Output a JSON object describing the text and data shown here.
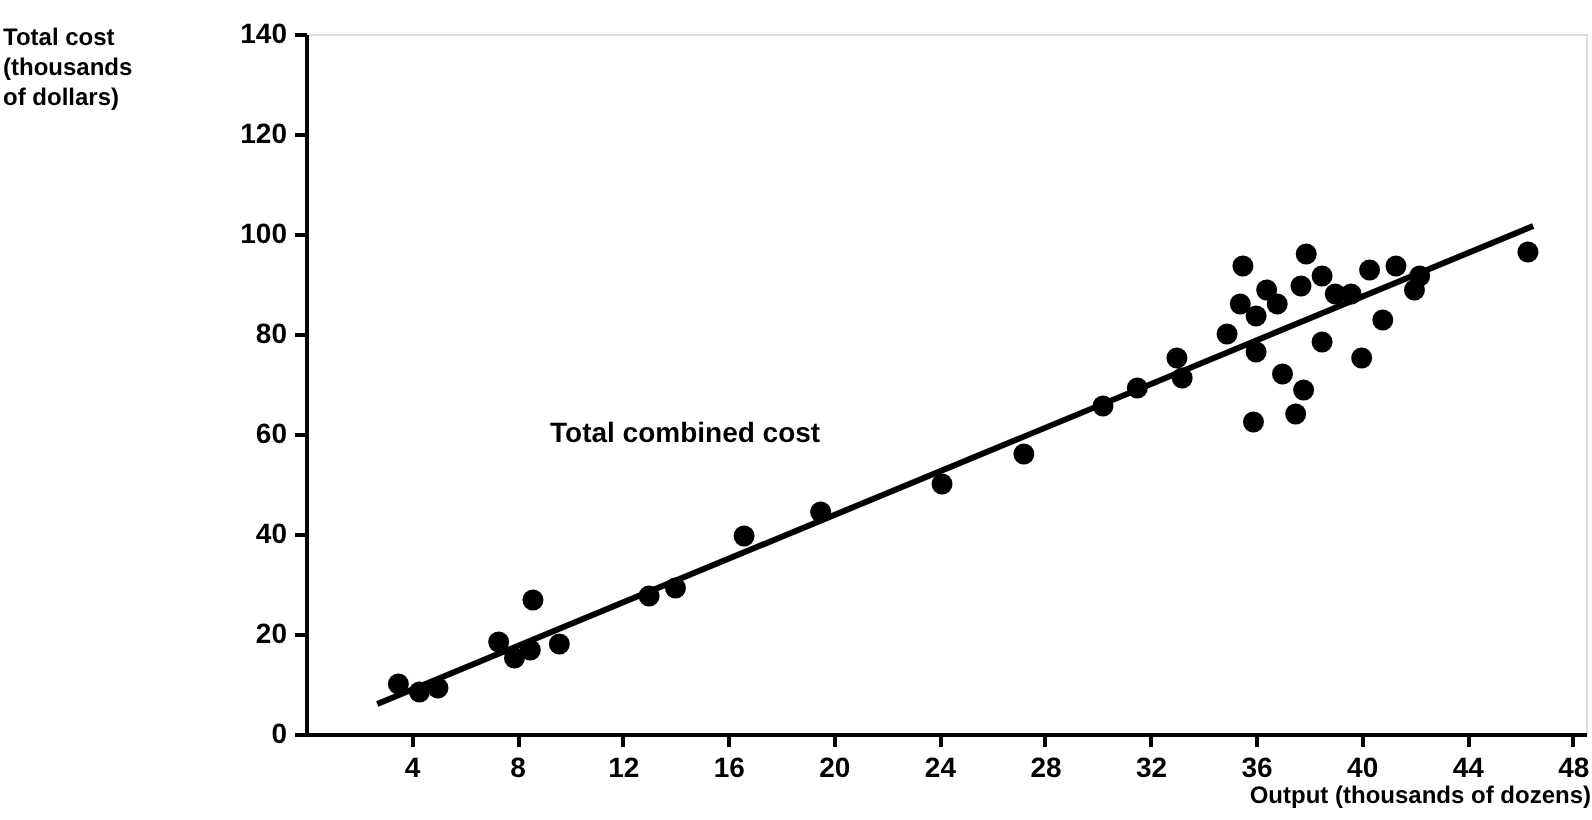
{
  "chart_data": {
    "type": "scatter",
    "xlabel": "Output (thousands of dozens)",
    "ylabel": "Total cost (thousands of dollars)",
    "xlim": [
      0,
      48.5
    ],
    "ylim": [
      0,
      140
    ],
    "xticks": [
      4,
      8,
      12,
      16,
      20,
      24,
      28,
      32,
      36,
      40,
      44,
      48
    ],
    "yticks": [
      0,
      20,
      40,
      60,
      80,
      100,
      120,
      140
    ],
    "grid": false,
    "annotations": [
      "Total combined cost"
    ],
    "series": [
      {
        "marker": "circle",
        "color": "#000000",
        "x": [
          3.5,
          4.3,
          5.0,
          7.3,
          7.9,
          8.5,
          8.6,
          9.6,
          13.0,
          14.0,
          16.6,
          19.5,
          24.1,
          27.2,
          30.2,
          31.5,
          33.0,
          33.2,
          34.9,
          35.5,
          35.4,
          36.0,
          36.0,
          35.9,
          36.4,
          36.8,
          37.0,
          37.8,
          37.5,
          37.9,
          37.7,
          38.5,
          38.5,
          39.0,
          39.6,
          40.0,
          40.3,
          40.8,
          41.3,
          42.0,
          42.2,
          46.3
        ],
        "values": [
          10,
          8.4,
          9.2,
          18.4,
          15.2,
          16.8,
          26.8,
          18,
          27.6,
          29.2,
          39.6,
          44.4,
          50,
          56,
          65.6,
          69.2,
          75.2,
          71.2,
          80,
          93.6,
          86,
          83.6,
          76.4,
          62.4,
          88.8,
          86,
          72,
          68.8,
          64,
          96,
          89.6,
          91.6,
          78.4,
          88,
          88,
          75.2,
          92.8,
          82.8,
          93.6,
          88.8,
          91.6,
          96.4
        ]
      },
      {
        "type": "line",
        "line_style": "solid",
        "color": "#000000",
        "x": [
          2.7,
          46.5
        ],
        "values": [
          6,
          101.6
        ]
      }
    ]
  }
}
